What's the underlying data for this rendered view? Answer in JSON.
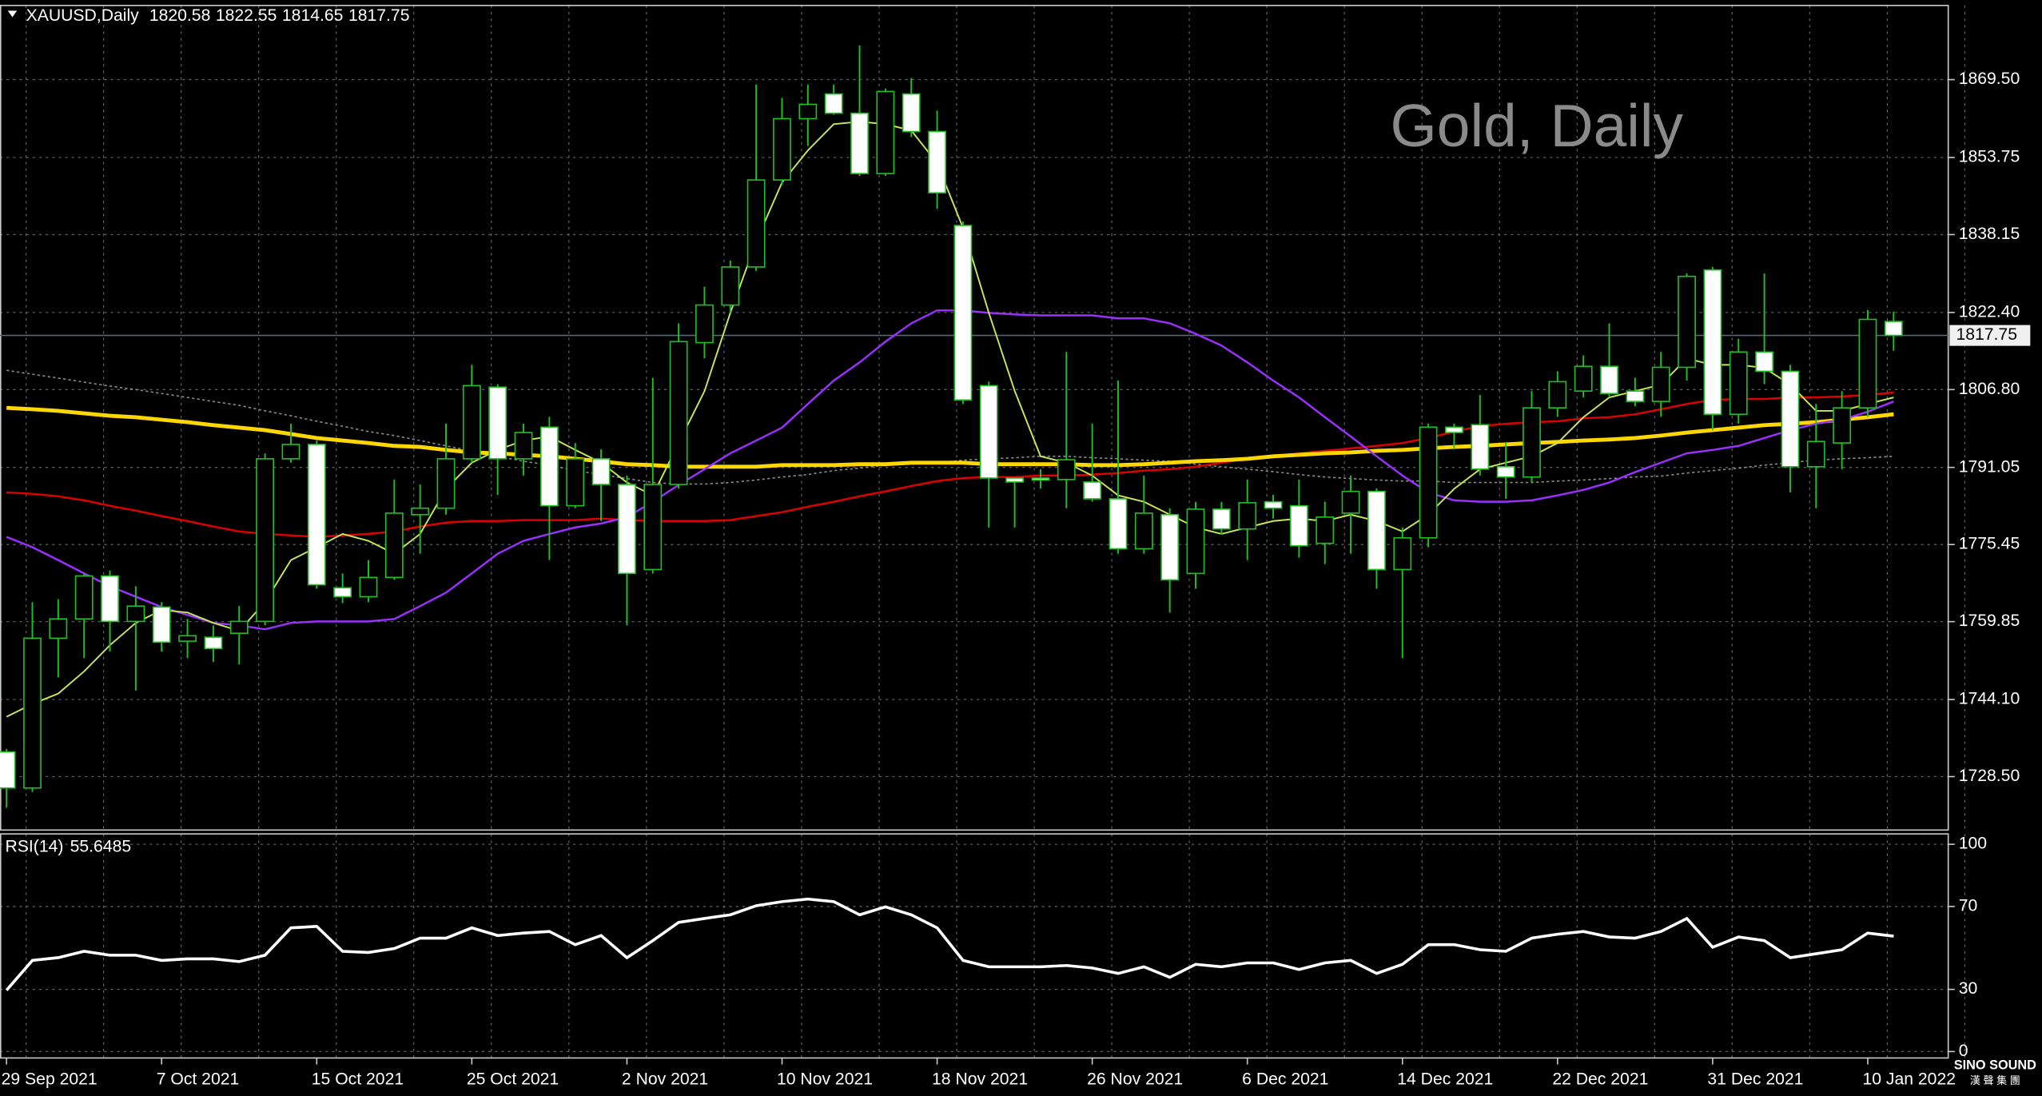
{
  "chart_data": [
    {
      "type": "candlestick",
      "title": "XAUUSD,Daily",
      "watermark": "Gold, Daily",
      "categories": [
        "29 Sep 2021",
        null,
        null,
        null,
        null,
        null,
        "7 Oct 2021",
        null,
        null,
        null,
        null,
        null,
        "15 Oct 2021",
        null,
        null,
        null,
        null,
        null,
        "25 Oct 2021",
        null,
        null,
        null,
        null,
        null,
        "2 Nov 2021",
        null,
        null,
        null,
        null,
        null,
        "10 Nov 2021",
        null,
        null,
        null,
        null,
        null,
        "18 Nov 2021",
        null,
        null,
        null,
        null,
        null,
        "26 Nov 2021",
        null,
        null,
        null,
        null,
        null,
        "6 Dec 2021",
        null,
        null,
        null,
        null,
        null,
        "14 Dec 2021",
        null,
        null,
        null,
        null,
        null,
        "22 Dec 2021",
        null,
        null,
        null,
        null,
        null,
        "31 Dec 2021",
        null,
        null,
        null,
        null,
        null,
        "10 Jan 2022",
        null
      ],
      "open": [
        1733.5,
        1726.2,
        1756.5,
        1760.4,
        1769.1,
        1759.9,
        1762.8,
        1755.9,
        1756.7,
        1757.5,
        1759.9,
        1792.8,
        1795.7,
        1766.7,
        1764.9,
        1768.8,
        1781.5,
        1782.8,
        1792.8,
        1807.3,
        1792.8,
        1799.2,
        1783.3,
        1792.8,
        1787.6,
        1770.4,
        1787.6,
        1816.3,
        1823.9,
        1831.6,
        1849.2,
        1861.6,
        1866.6,
        1862.7,
        1850.5,
        1866.6,
        1859.0,
        1840.0,
        1807.6,
        1788.9,
        1788.9,
        1788.6,
        1788.1,
        1784.7,
        1774.6,
        1781.5,
        1769.6,
        1782.6,
        1778.6,
        1784.1,
        1783.3,
        1775.7,
        1781.8,
        1786.2,
        1770.4,
        1776.8,
        1799.2,
        1799.7,
        1791.2,
        1789.1,
        1803.1,
        1806.5,
        1811.5,
        1806.5,
        1804.4,
        1811.3,
        1831.0,
        1801.8,
        1814.4,
        1810.5,
        1791.2,
        1796.0,
        1803.1,
        1820.58
      ],
      "high": [
        1734.1,
        1763.8,
        1764.4,
        1769.6,
        1770.2,
        1767.0,
        1763.8,
        1760.4,
        1759.1,
        1763.0,
        1793.9,
        1799.9,
        1796.5,
        1769.6,
        1772.3,
        1788.6,
        1787.6,
        1799.9,
        1811.8,
        1807.9,
        1799.9,
        1801.3,
        1796.0,
        1794.7,
        1789.4,
        1809.2,
        1820.2,
        1827.6,
        1832.9,
        1868.5,
        1865.8,
        1868.5,
        1868.5,
        1876.4,
        1867.7,
        1869.8,
        1863.2,
        1840.8,
        1808.4,
        1788.9,
        1790.7,
        1814.4,
        1799.9,
        1808.6,
        1789.4,
        1782.8,
        1784.1,
        1784.1,
        1788.6,
        1785.5,
        1788.6,
        1784.1,
        1789.4,
        1786.8,
        1778.9,
        1799.9,
        1799.9,
        1805.7,
        1796.0,
        1806.5,
        1810.5,
        1813.7,
        1820.2,
        1809.2,
        1814.4,
        1830.3,
        1831.6,
        1817.1,
        1830.3,
        1811.8,
        1803.9,
        1806.5,
        1822.9,
        1822.55
      ],
      "low": [
        1722.2,
        1725.4,
        1748.6,
        1752.5,
        1753.8,
        1745.9,
        1753.8,
        1752.5,
        1751.7,
        1751.2,
        1759.1,
        1792.0,
        1766.5,
        1763.6,
        1763.8,
        1768.3,
        1773.6,
        1781.5,
        1792.0,
        1785.5,
        1789.4,
        1772.3,
        1782.8,
        1780.2,
        1759.1,
        1769.6,
        1786.8,
        1813.1,
        1822.3,
        1830.8,
        1848.2,
        1856.1,
        1862.4,
        1850.0,
        1850.0,
        1857.9,
        1843.4,
        1803.9,
        1778.9,
        1778.9,
        1786.8,
        1782.8,
        1784.1,
        1773.6,
        1773.6,
        1761.7,
        1766.5,
        1777.5,
        1772.3,
        1780.7,
        1772.8,
        1771.5,
        1773.6,
        1766.5,
        1752.5,
        1774.9,
        1794.7,
        1789.4,
        1784.7,
        1788.1,
        1801.3,
        1805.2,
        1805.2,
        1803.4,
        1801.3,
        1808.6,
        1798.6,
        1799.9,
        1807.9,
        1786.0,
        1782.8,
        1790.7,
        1801.3,
        1814.65
      ],
      "close": [
        1726.2,
        1756.5,
        1760.4,
        1769.1,
        1759.9,
        1763.0,
        1755.7,
        1757.0,
        1754.4,
        1759.9,
        1792.8,
        1795.7,
        1767.3,
        1764.9,
        1768.8,
        1781.8,
        1782.8,
        1792.8,
        1807.6,
        1792.8,
        1798.1,
        1783.3,
        1792.8,
        1787.6,
        1769.6,
        1787.6,
        1816.5,
        1823.9,
        1831.6,
        1849.2,
        1861.6,
        1864.5,
        1862.7,
        1850.5,
        1867.1,
        1859.0,
        1846.6,
        1804.7,
        1788.9,
        1788.1,
        1788.6,
        1792.6,
        1784.7,
        1774.6,
        1781.8,
        1768.3,
        1782.6,
        1778.6,
        1783.9,
        1782.8,
        1775.2,
        1781.0,
        1786.2,
        1770.4,
        1776.8,
        1799.2,
        1798.1,
        1790.7,
        1789.1,
        1803.1,
        1808.4,
        1811.5,
        1806.0,
        1804.4,
        1811.3,
        1829.7,
        1801.8,
        1814.4,
        1810.5,
        1791.2,
        1796.3,
        1803.1,
        1821.0,
        1817.75
      ],
      "bull_color": "#000000",
      "bear_color": "#ffffff",
      "wick_color": "#1fbf1f",
      "series": [
        {
          "color": "#888888",
          "dash": true,
          "width": 1,
          "values": [
            1810.7,
            1809.9,
            1809.1,
            1808.3,
            1807.5,
            1806.8,
            1806.0,
            1805.2,
            1804.4,
            1803.6,
            1802.5,
            1801.5,
            1800.4,
            1799.4,
            1798.3,
            1797.5,
            1796.5,
            1795.4,
            1794.4,
            1793.3,
            1792.3,
            1791.5,
            1790.4,
            1789.6,
            1788.8,
            1788.0,
            1787.7,
            1787.7,
            1788.0,
            1788.5,
            1789.1,
            1789.6,
            1790.4,
            1790.9,
            1791.5,
            1791.7,
            1792.0,
            1792.5,
            1792.8,
            1793.0,
            1793.3,
            1793.3,
            1793.0,
            1792.8,
            1792.5,
            1792.3,
            1791.7,
            1791.2,
            1790.7,
            1790.2,
            1789.6,
            1789.1,
            1788.8,
            1788.5,
            1788.3,
            1788.3,
            1788.0,
            1788.0,
            1788.0,
            1788.0,
            1788.3,
            1788.5,
            1788.8,
            1789.1,
            1789.3,
            1789.9,
            1790.4,
            1790.9,
            1791.5,
            1792.0,
            1792.5,
            1792.8,
            1793.0,
            1793.3
          ]
        },
        {
          "color": "#e00000",
          "dash": false,
          "width": 1.5,
          "values": [
            1786.0,
            1785.7,
            1785.2,
            1784.4,
            1783.3,
            1782.3,
            1781.2,
            1780.2,
            1779.1,
            1778.1,
            1777.6,
            1777.3,
            1777.0,
            1777.3,
            1777.6,
            1778.1,
            1779.1,
            1779.9,
            1780.2,
            1780.2,
            1780.4,
            1780.4,
            1780.4,
            1780.7,
            1780.4,
            1780.2,
            1780.2,
            1780.2,
            1780.4,
            1781.2,
            1782.0,
            1783.1,
            1784.1,
            1785.2,
            1786.2,
            1787.3,
            1788.3,
            1788.9,
            1789.1,
            1789.1,
            1789.4,
            1789.4,
            1789.6,
            1789.9,
            1790.4,
            1790.7,
            1791.2,
            1792.0,
            1792.8,
            1793.3,
            1793.9,
            1794.4,
            1794.9,
            1795.4,
            1796.0,
            1797.0,
            1798.3,
            1799.4,
            1799.9,
            1800.2,
            1800.4,
            1801.0,
            1801.2,
            1801.8,
            1802.8,
            1803.9,
            1804.7,
            1804.9,
            1804.9,
            1805.2,
            1805.2,
            1805.4,
            1805.7,
            1806.2
          ]
        },
        {
          "color": "#ffd700",
          "dash": false,
          "width": 3,
          "values": [
            1803.1,
            1802.8,
            1802.5,
            1802.0,
            1801.5,
            1801.2,
            1800.7,
            1800.2,
            1799.6,
            1799.1,
            1798.6,
            1797.8,
            1797.0,
            1796.5,
            1796.0,
            1795.4,
            1795.2,
            1794.6,
            1794.1,
            1793.9,
            1793.6,
            1793.3,
            1792.8,
            1792.3,
            1791.7,
            1791.5,
            1791.2,
            1791.2,
            1791.2,
            1791.2,
            1791.5,
            1791.5,
            1791.5,
            1791.7,
            1791.7,
            1792.0,
            1792.0,
            1792.0,
            1791.7,
            1791.7,
            1791.7,
            1791.7,
            1791.5,
            1791.5,
            1791.7,
            1792.0,
            1792.3,
            1792.5,
            1792.8,
            1793.3,
            1793.6,
            1793.9,
            1794.1,
            1794.4,
            1794.6,
            1794.9,
            1795.2,
            1795.4,
            1795.7,
            1796.0,
            1796.2,
            1796.5,
            1796.7,
            1797.0,
            1797.5,
            1798.1,
            1798.6,
            1799.1,
            1799.6,
            1799.9,
            1800.2,
            1800.7,
            1801.2,
            1801.8
          ]
        },
        {
          "color": "#9b30ff",
          "dash": false,
          "width": 1.5,
          "values": [
            1777.0,
            1774.9,
            1772.3,
            1769.6,
            1767.0,
            1764.9,
            1762.8,
            1761.2,
            1759.6,
            1759.1,
            1758.3,
            1759.6,
            1759.9,
            1759.9,
            1759.9,
            1760.4,
            1763.0,
            1765.7,
            1769.6,
            1773.6,
            1776.2,
            1777.6,
            1778.9,
            1779.7,
            1781.0,
            1784.1,
            1787.5,
            1790.7,
            1793.9,
            1796.5,
            1799.1,
            1803.9,
            1808.6,
            1812.3,
            1816.5,
            1820.2,
            1822.8,
            1822.8,
            1822.3,
            1822.0,
            1821.8,
            1821.8,
            1821.8,
            1821.2,
            1821.2,
            1820.2,
            1818.1,
            1815.7,
            1812.3,
            1808.6,
            1805.2,
            1801.2,
            1797.3,
            1793.3,
            1789.4,
            1786.0,
            1784.4,
            1784.1,
            1784.1,
            1784.4,
            1785.4,
            1786.5,
            1788.0,
            1790.1,
            1792.0,
            1793.9,
            1794.6,
            1795.4,
            1797.0,
            1798.6,
            1799.9,
            1800.7,
            1802.3,
            1804.4
          ]
        },
        {
          "color": "#c8e65a",
          "dash": false,
          "width": 1.2,
          "values": [
            1740.6,
            1743.2,
            1745.3,
            1749.8,
            1755.1,
            1759.6,
            1762.2,
            1761.7,
            1759.6,
            1758.0,
            1763.8,
            1772.3,
            1774.9,
            1777.6,
            1776.2,
            1773.6,
            1777.6,
            1786.7,
            1792.0,
            1794.6,
            1796.5,
            1797.3,
            1794.6,
            1792.0,
            1788.0,
            1785.4,
            1796.0,
            1806.5,
            1822.3,
            1836.8,
            1848.7,
            1855.2,
            1860.5,
            1861.0,
            1860.5,
            1859.2,
            1852.6,
            1839.5,
            1822.3,
            1806.5,
            1793.3,
            1792.0,
            1789.4,
            1785.4,
            1784.1,
            1781.5,
            1778.9,
            1777.6,
            1778.9,
            1780.2,
            1780.7,
            1780.2,
            1781.5,
            1780.2,
            1778.1,
            1781.5,
            1786.7,
            1790.7,
            1792.0,
            1793.3,
            1796.0,
            1801.2,
            1805.2,
            1806.5,
            1807.8,
            1813.1,
            1811.8,
            1811.8,
            1811.2,
            1807.8,
            1802.5,
            1802.5,
            1803.9,
            1805.2
          ]
        }
      ],
      "ylim": [
        1717.7,
        1884.5
      ],
      "yticks": [
        {
          "value": 1869.5,
          "label": "1869.50"
        },
        {
          "value": 1853.75,
          "label": "1853.75"
        },
        {
          "value": 1838.15,
          "label": "1838.15"
        },
        {
          "value": 1822.4,
          "label": "1822.40"
        },
        {
          "value": 1806.8,
          "label": "1806.80"
        },
        {
          "value": 1791.05,
          "label": "1791.05"
        },
        {
          "value": 1775.45,
          "label": "1775.45"
        },
        {
          "value": 1759.85,
          "label": "1759.85"
        },
        {
          "value": 1744.1,
          "label": "1744.10"
        },
        {
          "value": 1728.5,
          "label": "1728.50"
        }
      ],
      "grid": true
    },
    {
      "type": "line",
      "title": "RSI(14)",
      "color": "#ffffff",
      "values": [
        29.6,
        44.0,
        45.3,
        48.4,
        46.5,
        46.5,
        44.0,
        44.7,
        44.7,
        43.4,
        46.5,
        59.7,
        60.4,
        48.4,
        47.8,
        49.7,
        54.7,
        54.7,
        59.7,
        56.0,
        57.2,
        57.9,
        51.6,
        56.0,
        45.3,
        53.5,
        62.3,
        64.2,
        66.0,
        70.4,
        72.3,
        73.6,
        72.3,
        66.0,
        69.8,
        66.0,
        59.7,
        44.0,
        40.9,
        40.9,
        40.9,
        41.5,
        40.3,
        37.7,
        40.9,
        35.8,
        42.1,
        40.9,
        42.8,
        42.8,
        39.6,
        42.8,
        44.0,
        37.7,
        42.1,
        51.6,
        51.6,
        49.1,
        48.4,
        54.7,
        56.6,
        57.9,
        55.3,
        54.7,
        57.9,
        64.2,
        50.3,
        55.3,
        53.5,
        45.3,
        47.2,
        49.1,
        57.2,
        55.6485
      ],
      "ylim": [
        -3.1,
        105
      ],
      "yticks": [
        100,
        70,
        30,
        0
      ],
      "grid": true
    }
  ],
  "logo": {
    "name": "SINO SOUND",
    "sub": "漢 聲 集 團"
  }
}
